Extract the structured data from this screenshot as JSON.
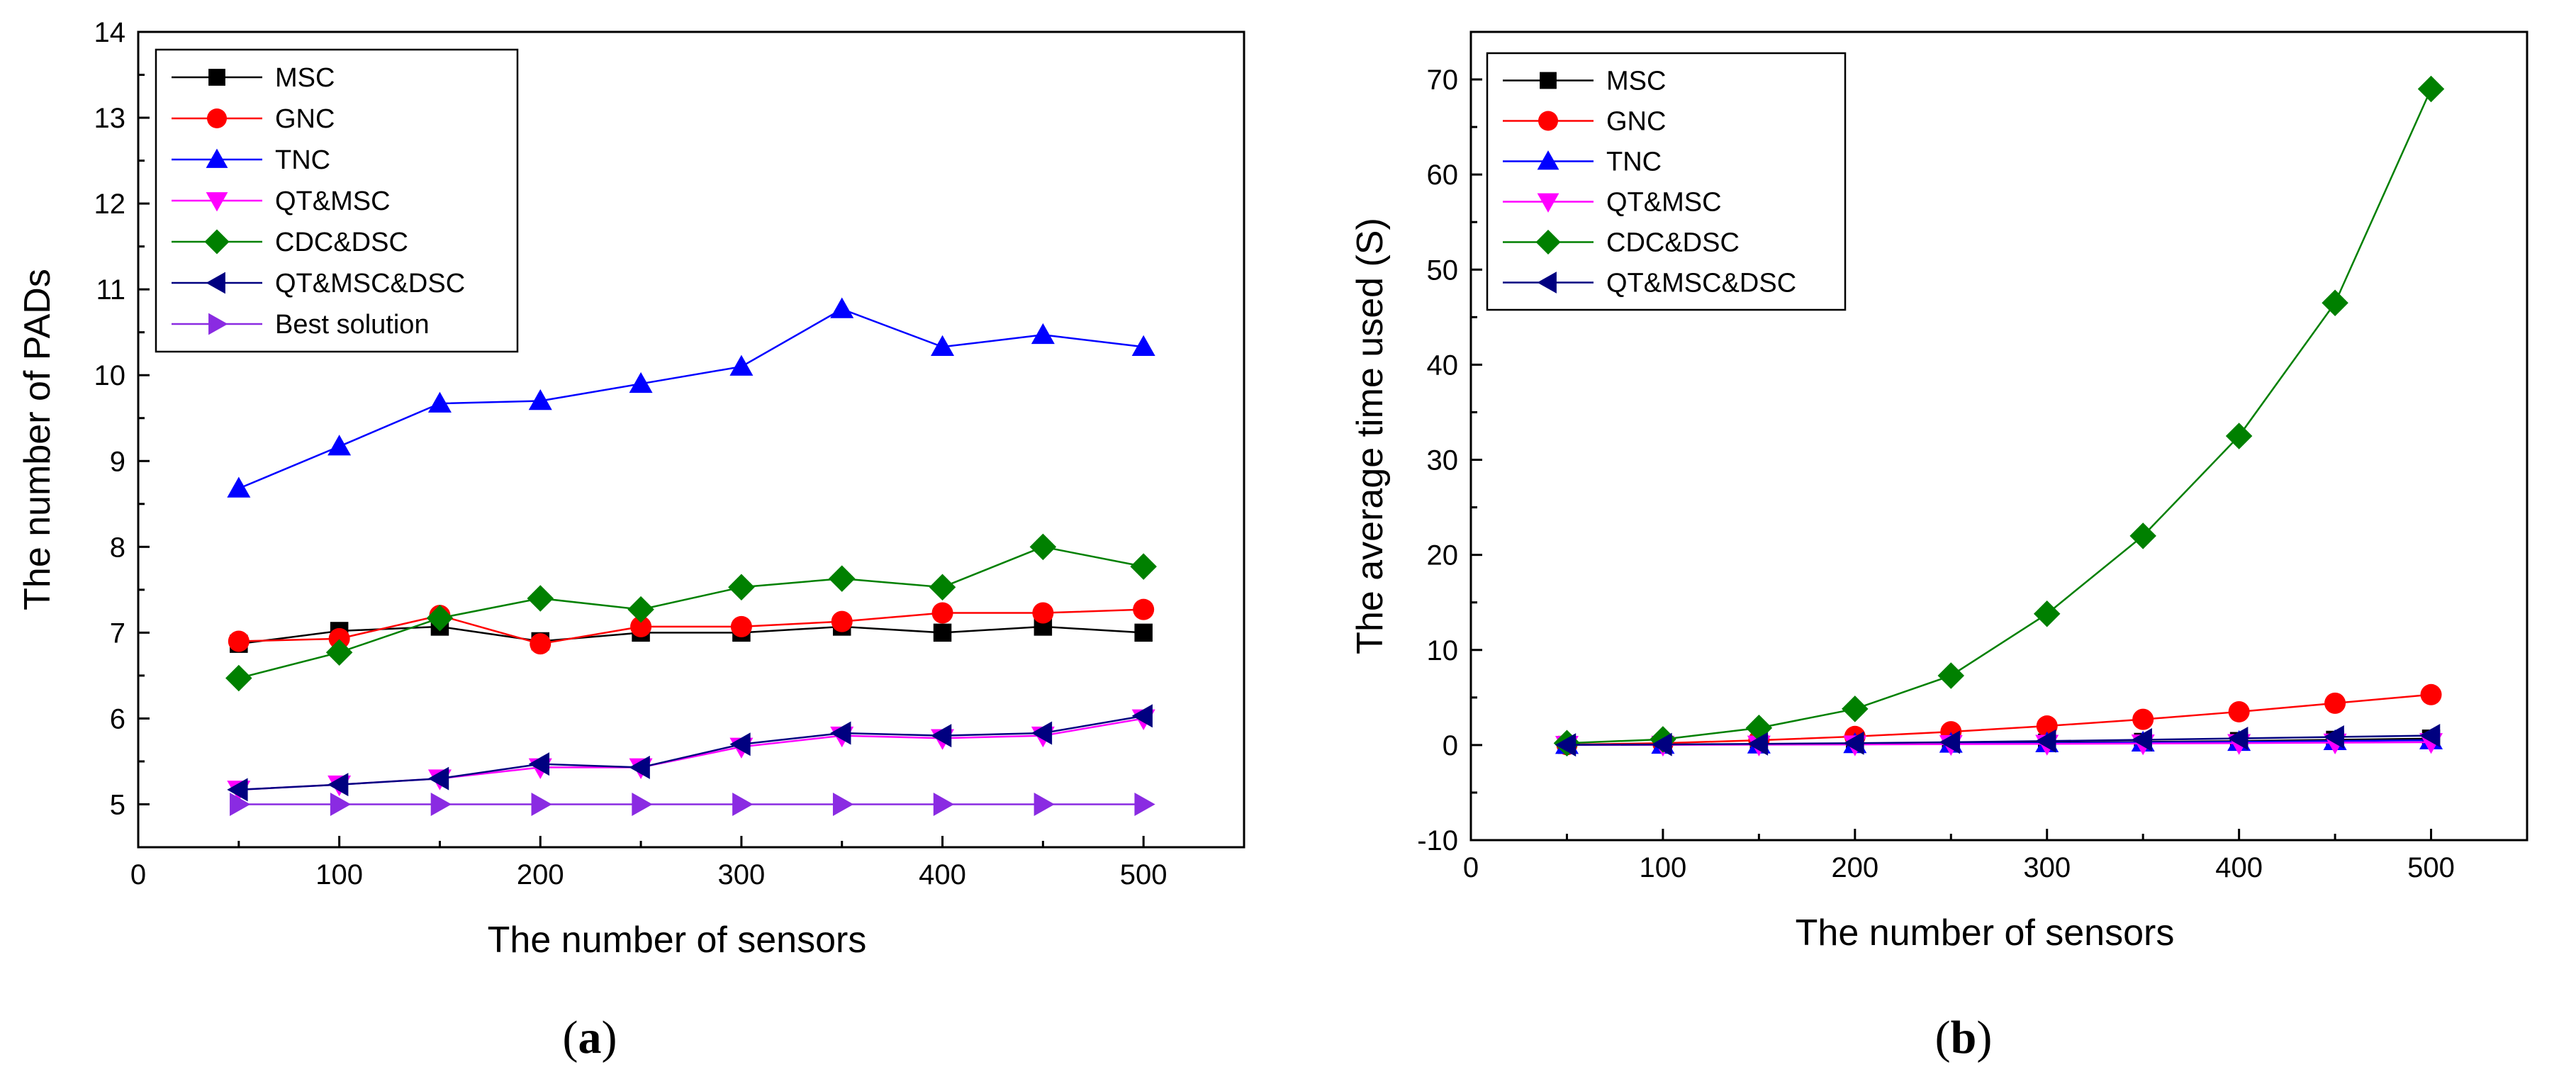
{
  "figure": {
    "captions": [
      {
        "open": "(",
        "letter": "a",
        "close": ")"
      },
      {
        "open": "(",
        "letter": "b",
        "close": ")"
      }
    ]
  },
  "colors": {
    "MSC": "#000000",
    "GNC": "#ff0000",
    "TNC": "#0000ff",
    "QT&MSC": "#ff00ff",
    "CDC&DSC": "#008000",
    "QT&MSC&DSC": "#000080",
    "Best solution": "#8a2be2"
  },
  "chart_data": [
    {
      "type": "line",
      "xlabel": "The number of sensors",
      "ylabel": "The number of PADs",
      "xlim": [
        0,
        550
      ],
      "ylim": [
        4.5,
        14
      ],
      "xticks": [
        0,
        100,
        200,
        300,
        400,
        500
      ],
      "yticks": [
        5,
        6,
        7,
        8,
        9,
        10,
        11,
        12,
        13,
        14
      ],
      "legend_position": "top-left",
      "x": [
        50,
        100,
        150,
        200,
        250,
        300,
        350,
        400,
        450,
        500
      ],
      "series": [
        {
          "name": "MSC",
          "marker": "square",
          "values": [
            6.87,
            7.02,
            7.07,
            6.9,
            7.0,
            7.0,
            7.07,
            7.0,
            7.07,
            7.0
          ]
        },
        {
          "name": "GNC",
          "marker": "circle",
          "values": [
            6.9,
            6.93,
            7.2,
            6.87,
            7.07,
            7.07,
            7.13,
            7.23,
            7.23,
            7.27
          ]
        },
        {
          "name": "TNC",
          "marker": "triangle-up",
          "values": [
            8.68,
            9.17,
            9.67,
            9.7,
            9.9,
            10.1,
            10.77,
            10.33,
            10.47,
            10.33
          ]
        },
        {
          "name": "QT&MSC",
          "marker": "triangle-down",
          "values": [
            5.17,
            5.23,
            5.3,
            5.43,
            5.43,
            5.67,
            5.8,
            5.77,
            5.8,
            6.0
          ]
        },
        {
          "name": "CDC&DSC",
          "marker": "diamond",
          "values": [
            6.47,
            6.77,
            7.17,
            7.4,
            7.27,
            7.53,
            7.63,
            7.53,
            8.0,
            7.77
          ]
        },
        {
          "name": "QT&MSC&DSC",
          "marker": "triangle-left",
          "values": [
            5.17,
            5.23,
            5.3,
            5.47,
            5.43,
            5.7,
            5.83,
            5.8,
            5.83,
            6.03
          ]
        },
        {
          "name": "Best solution",
          "marker": "triangle-right",
          "values": [
            5,
            5,
            5,
            5,
            5,
            5,
            5,
            5,
            5,
            5
          ]
        }
      ]
    },
    {
      "type": "line",
      "xlabel": "The number of sensors",
      "ylabel": "The average time used (S)",
      "xlim": [
        0,
        550
      ],
      "ylim": [
        -10,
        75
      ],
      "xticks": [
        0,
        100,
        200,
        300,
        400,
        500
      ],
      "yticks": [
        -10,
        0,
        10,
        20,
        30,
        40,
        50,
        60,
        70
      ],
      "legend_position": "top-left",
      "x": [
        50,
        100,
        150,
        200,
        250,
        300,
        350,
        400,
        450,
        500
      ],
      "series": [
        {
          "name": "MSC",
          "marker": "square",
          "values": [
            0.02,
            0.05,
            0.08,
            0.12,
            0.18,
            0.25,
            0.33,
            0.42,
            0.55,
            0.68
          ]
        },
        {
          "name": "GNC",
          "marker": "circle",
          "values": [
            0.05,
            0.2,
            0.5,
            0.9,
            1.4,
            2.0,
            2.7,
            3.5,
            4.4,
            5.3
          ]
        },
        {
          "name": "TNC",
          "marker": "triangle-up",
          "values": [
            0.02,
            0.04,
            0.07,
            0.1,
            0.15,
            0.2,
            0.27,
            0.34,
            0.42,
            0.5
          ]
        },
        {
          "name": "QT&MSC",
          "marker": "triangle-down",
          "values": [
            0.01,
            0.02,
            0.04,
            0.06,
            0.09,
            0.12,
            0.16,
            0.2,
            0.25,
            0.3
          ]
        },
        {
          "name": "CDC&DSC",
          "marker": "diamond",
          "values": [
            0.2,
            0.6,
            1.8,
            3.8,
            7.3,
            13.8,
            22.0,
            32.5,
            46.5,
            69.0
          ]
        },
        {
          "name": "QT&MSC&DSC",
          "marker": "triangle-left",
          "values": [
            0.02,
            0.06,
            0.12,
            0.2,
            0.3,
            0.42,
            0.55,
            0.7,
            0.85,
            1.0
          ]
        }
      ]
    }
  ]
}
